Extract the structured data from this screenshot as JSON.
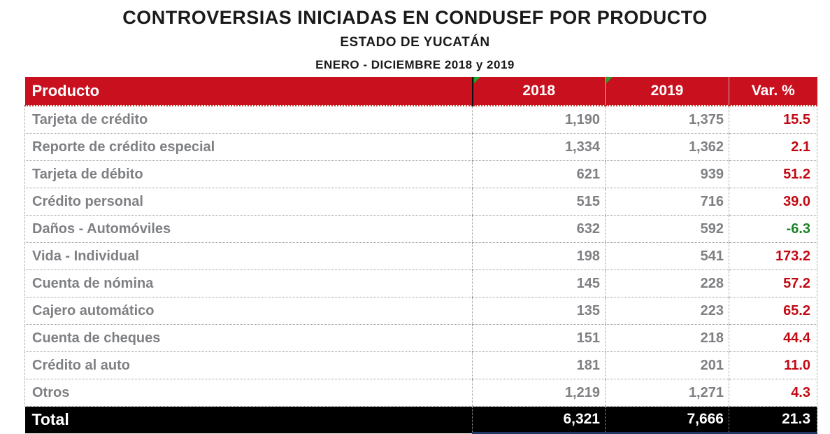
{
  "title": "CONTROVERSIAS INICIADAS EN CONDUSEF POR PRODUCTO",
  "subtitle": "ESTADO DE YUCATÁN",
  "period": "ENERO - DICIEMBRE 2018 y 2019",
  "colors": {
    "header_bg": "#C8101E",
    "header_text": "#FFFFFF",
    "positive_var": "#C20813",
    "negative_var": "#1E8228",
    "body_text_gray": "#7F8084",
    "total_bg": "#000000",
    "total_text": "#FFFFFF",
    "corner_triangle_green": "#26A32B",
    "total_underline_navy": "#1F3864"
  },
  "table": {
    "columns": [
      "Producto",
      "2018",
      "2019",
      "Var. %"
    ],
    "rows": [
      {
        "producto": "Tarjeta de crédito",
        "y2018": "1,190",
        "y2019": "1,375",
        "var": "15.5",
        "var_color": "#C20813"
      },
      {
        "producto": "Reporte de crédito especial",
        "y2018": "1,334",
        "y2019": "1,362",
        "var": "2.1",
        "var_color": "#C20813"
      },
      {
        "producto": "Tarjeta de débito",
        "y2018": "621",
        "y2019": "939",
        "var": "51.2",
        "var_color": "#C20813"
      },
      {
        "producto": "Crédito personal",
        "y2018": "515",
        "y2019": "716",
        "var": "39.0",
        "var_color": "#C20813"
      },
      {
        "producto": "Daños - Automóviles",
        "y2018": "632",
        "y2019": "592",
        "var": "-6.3",
        "var_color": "#1E8228"
      },
      {
        "producto": "Vida - Individual",
        "y2018": "198",
        "y2019": "541",
        "var": "173.2",
        "var_color": "#C20813"
      },
      {
        "producto": "Cuenta de nómina",
        "y2018": "145",
        "y2019": "228",
        "var": "57.2",
        "var_color": "#C20813"
      },
      {
        "producto": "Cajero automático",
        "y2018": "135",
        "y2019": "223",
        "var": "65.2",
        "var_color": "#C20813"
      },
      {
        "producto": "Cuenta de cheques",
        "y2018": "151",
        "y2019": "218",
        "var": "44.4",
        "var_color": "#C20813"
      },
      {
        "producto": "Crédito al auto",
        "y2018": "181",
        "y2019": "201",
        "var": "11.0",
        "var_color": "#C20813"
      },
      {
        "producto": "Otros",
        "y2018": "1,219",
        "y2019": "1,271",
        "var": "4.3",
        "var_color": "#C20813"
      }
    ],
    "total": {
      "label": "Total",
      "y2018": "6,321",
      "y2019": "7,666",
      "var": "21.3"
    }
  },
  "chart_data": {
    "type": "table",
    "title": "CONTROVERSIAS INICIADAS EN CONDUSEF POR PRODUCTO",
    "subtitle": "ESTADO DE YUCATÁN",
    "period": "ENERO - DICIEMBRE 2018 y 2019",
    "columns": [
      "Producto",
      "2018",
      "2019",
      "Var. %"
    ],
    "categories": [
      "Tarjeta de crédito",
      "Reporte de crédito especial",
      "Tarjeta de débito",
      "Crédito personal",
      "Daños - Automóviles",
      "Vida - Individual",
      "Cuenta de nómina",
      "Cajero automático",
      "Cuenta de cheques",
      "Crédito al auto",
      "Otros"
    ],
    "series": [
      {
        "name": "2018",
        "values": [
          1190,
          1334,
          621,
          515,
          632,
          198,
          145,
          135,
          151,
          181,
          1219
        ]
      },
      {
        "name": "2019",
        "values": [
          1375,
          1362,
          939,
          716,
          592,
          541,
          228,
          223,
          218,
          201,
          1271
        ]
      },
      {
        "name": "Var. %",
        "values": [
          15.5,
          2.1,
          51.2,
          39.0,
          -6.3,
          173.2,
          57.2,
          65.2,
          44.4,
          11.0,
          4.3
        ]
      }
    ],
    "total": {
      "2018": 6321,
      "2019": 7666,
      "Var. %": 21.3
    }
  }
}
